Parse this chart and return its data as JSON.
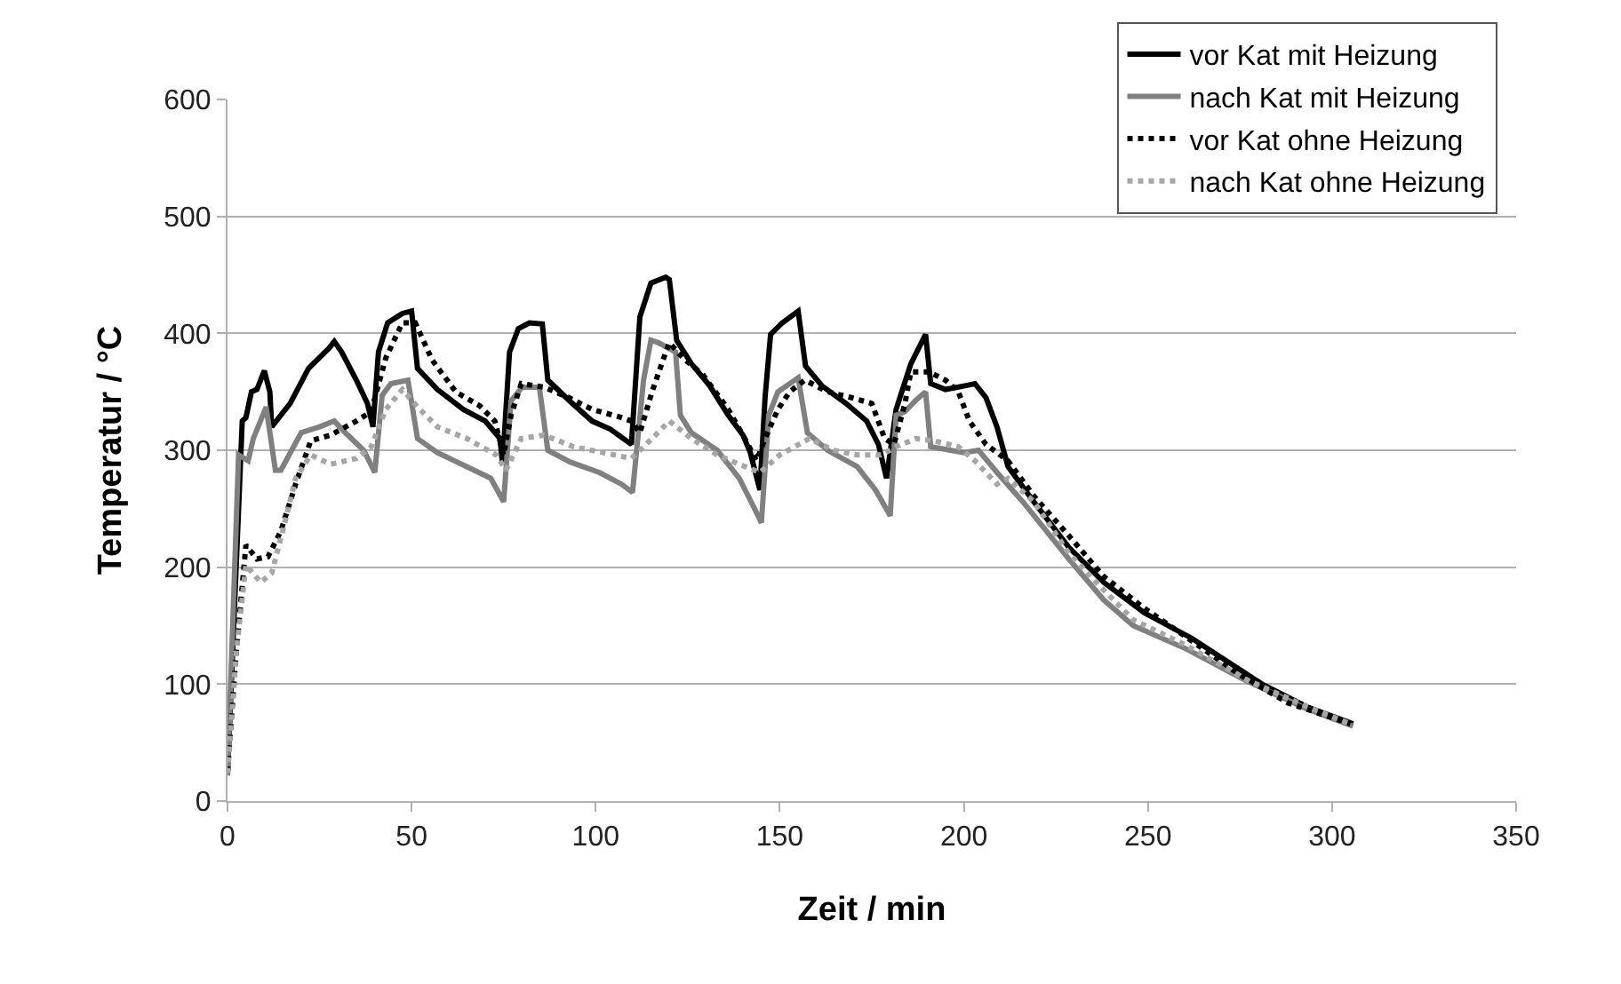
{
  "chart_data": {
    "type": "line",
    "xlabel": "Zeit / min",
    "ylabel": "Temperatur / °C",
    "xlim": [
      0,
      350
    ],
    "xticks": [
      0,
      50,
      100,
      150,
      200,
      250,
      300,
      350
    ],
    "ylim": [
      0,
      600
    ],
    "yticks": [
      0,
      100,
      200,
      300,
      400,
      500,
      600
    ],
    "grid": "y",
    "legend": "top right",
    "marker": "none",
    "series": [
      {
        "name": "vor Kat mit Heizung",
        "color": "#000000",
        "line_style": "solid",
        "x": [
          0,
          4,
          5,
          6.5,
          8,
          10,
          11.5,
          12,
          17,
          22,
          27.5,
          29,
          31,
          35,
          38,
          39.5,
          41,
          43.5,
          47.5,
          50,
          51.6,
          57,
          64,
          70,
          74,
          74.7,
          76.6,
          79,
          82,
          85.5,
          87,
          93,
          99,
          104,
          109.7,
          112,
          115,
          119,
          120,
          122,
          126,
          131,
          136,
          140,
          142,
          144.6,
          146,
          147.5,
          150.7,
          155,
          157,
          161.5,
          168,
          173.6,
          176.8,
          179,
          181.6,
          185.6,
          189.6,
          191,
          195,
          200,
          203,
          206,
          209,
          212,
          219,
          228.5,
          238,
          249,
          262,
          281,
          293.6,
          305.7
        ],
        "values": [
          22,
          325,
          328,
          350,
          352,
          368,
          350,
          320,
          340,
          370,
          387,
          393,
          384,
          360,
          340,
          320,
          384,
          409,
          417,
          419,
          370,
          352,
          335,
          325,
          310,
          288,
          384,
          404,
          409,
          408,
          360,
          342,
          325,
          318,
          305,
          414,
          443,
          448,
          446,
          394,
          374,
          355,
          330,
          313,
          298,
          266,
          345,
          399,
          409,
          419,
          372,
          355,
          340,
          325,
          305,
          276,
          335,
          374,
          399,
          357,
          352,
          355,
          357,
          345,
          320,
          286,
          256,
          217,
          187,
          161,
          139,
          100,
          80,
          66
        ]
      },
      {
        "name": "nach Kat mit Heizung",
        "color": "#808080",
        "line_style": "solid",
        "x": [
          0,
          3,
          5.6,
          7,
          10.5,
          13,
          14.5,
          20,
          25,
          29,
          32,
          37,
          40,
          42,
          44.4,
          49,
          51.6,
          57,
          65,
          71.5,
          75,
          77,
          80,
          84.7,
          87,
          93,
          101,
          107,
          110,
          113,
          115,
          117,
          121.7,
          123,
          126,
          133,
          139,
          143,
          145,
          147,
          149.5,
          155,
          157.5,
          163,
          171,
          176,
          180,
          181.6,
          184,
          187,
          189.6,
          191,
          200,
          204,
          209,
          216,
          228.5,
          238,
          246,
          260.5,
          276.6,
          293,
          305.7
        ],
        "values": [
          22,
          296,
          291,
          310,
          337,
          283,
          283,
          315,
          320,
          325,
          315,
          300,
          281,
          347,
          357,
          360,
          310,
          298,
          286,
          276,
          256,
          342,
          354,
          354,
          300,
          290,
          281,
          271,
          264,
          360,
          394,
          392,
          384,
          330,
          315,
          300,
          276,
          251,
          238,
          330,
          350,
          362,
          315,
          300,
          286,
          266,
          244,
          330,
          333,
          343,
          350,
          303,
          298,
          300,
          281,
          256,
          207,
          172,
          150,
          130,
          103,
          79,
          64
        ]
      },
      {
        "name": "vor Kat ohne Heizung",
        "color": "#000000",
        "line_style": "dotted",
        "x": [
          0,
          2.4,
          5,
          8,
          11,
          14.5,
          18.5,
          22.6,
          28,
          35,
          39,
          43,
          47.5,
          51,
          55.6,
          62,
          68.5,
          72.6,
          75,
          77,
          79.8,
          86,
          92.7,
          99,
          107,
          109.7,
          112,
          115.3,
          118.5,
          120,
          124,
          129,
          136,
          140.5,
          143.7,
          146,
          149.5,
          152.7,
          156.8,
          163,
          169.5,
          175,
          178.5,
          181,
          184,
          185.6,
          190.5,
          195,
          198.5,
          201.5,
          206,
          212,
          219,
          228.5,
          238,
          249,
          260.5,
          275,
          288,
          305
        ],
        "values": [
          25,
          128,
          219,
          207,
          209,
          231,
          271,
          308,
          313,
          325,
          333,
          379,
          409,
          409,
          377,
          350,
          338,
          325,
          296,
          330,
          357,
          354,
          345,
          335,
          328,
          325,
          315,
          350,
          379,
          392,
          378,
          365,
          335,
          310,
          291,
          310,
          335,
          350,
          360,
          350,
          345,
          340,
          310,
          305,
          340,
          367,
          367,
          360,
          350,
          325,
          305,
          291,
          261,
          227,
          192,
          165,
          140,
          108,
          84,
          66
        ]
      },
      {
        "name": "nach Kat ohne Heizung",
        "color": "#a6a6a6",
        "line_style": "dotted",
        "x": [
          0,
          2.4,
          5,
          9,
          12,
          15,
          18.5,
          22.6,
          28,
          35,
          39,
          43,
          47.5,
          51.6,
          57,
          65,
          73,
          75.6,
          79.8,
          86,
          94,
          102,
          109.7,
          115.3,
          120,
          126,
          133,
          139,
          144.6,
          150,
          158,
          164.6,
          171,
          177.5,
          181.6,
          187,
          192,
          198.5,
          203,
          209,
          212,
          219,
          228.5,
          236.6,
          246,
          260.5,
          276.6,
          293,
          305
        ],
        "values": [
          24,
          128,
          202,
          187,
          195,
          231,
          276,
          296,
          288,
          293,
          303,
          335,
          352,
          337,
          320,
          310,
          296,
          283,
          310,
          313,
          303,
          298,
          293,
          310,
          325,
          310,
          296,
          288,
          281,
          296,
          310,
          300,
          296,
          296,
          303,
          310,
          308,
          303,
          291,
          271,
          276,
          256,
          212,
          185,
          155,
          133,
          104,
          81,
          66
        ]
      }
    ]
  }
}
